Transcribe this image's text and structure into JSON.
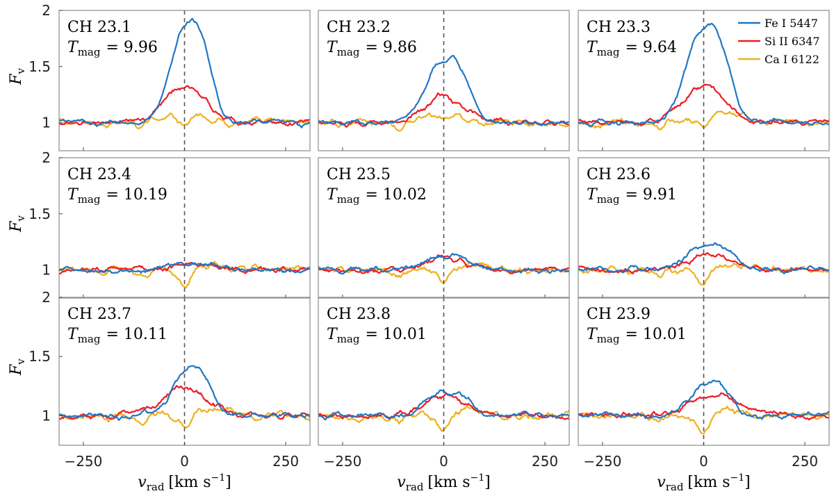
{
  "chart_data": {
    "type": "line",
    "layout": "3x3 grid of panels with shared axes",
    "xlabel": "v_rad [km s^-1]",
    "ylabel": "F_v",
    "xlim": [
      -310,
      310
    ],
    "ylim": [
      0.75,
      2.0
    ],
    "xticks": [
      -250,
      0,
      250
    ],
    "yticks": [
      1,
      1.5,
      2
    ],
    "grid": false,
    "reference_line": {
      "x": 0,
      "style": "dashed",
      "color": "#555555"
    },
    "legend": {
      "placement": "top-right of panel CH 23.3",
      "entries": [
        {
          "name": "Fe I 5447",
          "color": "#1f77c4"
        },
        {
          "name": "Si II 6347",
          "color": "#ee1c25"
        },
        {
          "name": "Ca I 6122",
          "color": "#edb120"
        }
      ]
    },
    "panels": [
      {
        "title": "CH 23.1",
        "tmag_label": "T_mag",
        "tmag_value": "= 9.96",
        "series": {
          "fe": {
            "peak": 1.85,
            "width": 55,
            "offset": 5,
            "bump": 0.0
          },
          "si": {
            "peak": 1.33,
            "width": 70,
            "offset": 0,
            "bump": 0.0
          },
          "ca": {
            "peak": 1.12,
            "width": 60,
            "offset": 0,
            "dip": 0.88
          }
        }
      },
      {
        "title": "CH 23.2",
        "tmag_label": "T_mag",
        "tmag_value": "= 9.86",
        "series": {
          "fe": {
            "peak": 1.55,
            "width": 60,
            "offset": 0,
            "bump": 0.0
          },
          "si": {
            "peak": 1.24,
            "width": 65,
            "offset": 0,
            "bump": 0.0
          },
          "ca": {
            "peak": 1.1,
            "width": 60,
            "offset": 0,
            "dip": 0.92
          }
        }
      },
      {
        "title": "CH 23.3",
        "tmag_label": "T_mag",
        "tmag_value": "= 9.64",
        "series": {
          "fe": {
            "peak": 1.83,
            "width": 60,
            "offset": 0,
            "bump": 0.0
          },
          "si": {
            "peak": 1.33,
            "width": 70,
            "offset": 0,
            "bump": 0.0
          },
          "ca": {
            "peak": 1.12,
            "width": 60,
            "offset": 40,
            "dip": 0.9
          }
        }
      },
      {
        "title": "CH 23.4",
        "tmag_label": "T_mag",
        "tmag_value": "= 10.19",
        "series": {
          "fe": {
            "peak": 1.05,
            "width": 80,
            "offset": 20,
            "bump": 0.0
          },
          "si": {
            "peak": 1.06,
            "width": 80,
            "offset": 30,
            "bump": 0.0
          },
          "ca": {
            "peak": 1.03,
            "width": 60,
            "offset": 60,
            "dip": 0.85
          }
        }
      },
      {
        "title": "CH 23.5",
        "tmag_label": "T_mag",
        "tmag_value": "= 10.02",
        "series": {
          "fe": {
            "peak": 1.12,
            "width": 70,
            "offset": 0,
            "bump": 0.0
          },
          "si": {
            "peak": 1.1,
            "width": 80,
            "offset": 0,
            "bump": 0.0
          },
          "ca": {
            "peak": 1.05,
            "width": 60,
            "offset": 60,
            "dip": 0.88
          }
        }
      },
      {
        "title": "CH 23.6",
        "tmag_label": "T_mag",
        "tmag_value": "= 9.91",
        "series": {
          "fe": {
            "peak": 1.22,
            "width": 70,
            "offset": 10,
            "bump": 0.0
          },
          "si": {
            "peak": 1.14,
            "width": 80,
            "offset": 20,
            "bump": 0.0
          },
          "ca": {
            "peak": 1.04,
            "width": 60,
            "offset": 60,
            "dip": 0.86
          }
        }
      },
      {
        "title": "CH 23.7",
        "tmag_label": "T_mag",
        "tmag_value": "= 10.11",
        "series": {
          "fe": {
            "peak": 1.38,
            "width": 55,
            "offset": 10,
            "bump": 0.0
          },
          "si": {
            "peak": 1.24,
            "width": 75,
            "offset": 0,
            "bump": 0.0
          },
          "ca": {
            "peak": 1.06,
            "width": 60,
            "offset": 60,
            "dip": 0.88
          }
        }
      },
      {
        "title": "CH 23.8",
        "tmag_label": "T_mag",
        "tmag_value": "= 10.01",
        "series": {
          "fe": {
            "peak": 1.2,
            "width": 60,
            "offset": 0,
            "bump": 0.0
          },
          "si": {
            "peak": 1.17,
            "width": 70,
            "offset": 0,
            "bump": 0.0
          },
          "ca": {
            "peak": 1.05,
            "width": 60,
            "offset": 60,
            "dip": 0.86
          }
        }
      },
      {
        "title": "CH 23.9",
        "tmag_label": "T_mag",
        "tmag_value": "= 10.01",
        "series": {
          "fe": {
            "peak": 1.25,
            "width": 60,
            "offset": 10,
            "bump": 0.0
          },
          "si": {
            "peak": 1.17,
            "width": 85,
            "offset": 30,
            "bump": 0.0
          },
          "ca": {
            "peak": 1.06,
            "width": 60,
            "offset": 60,
            "dip": 0.84
          }
        }
      }
    ]
  }
}
